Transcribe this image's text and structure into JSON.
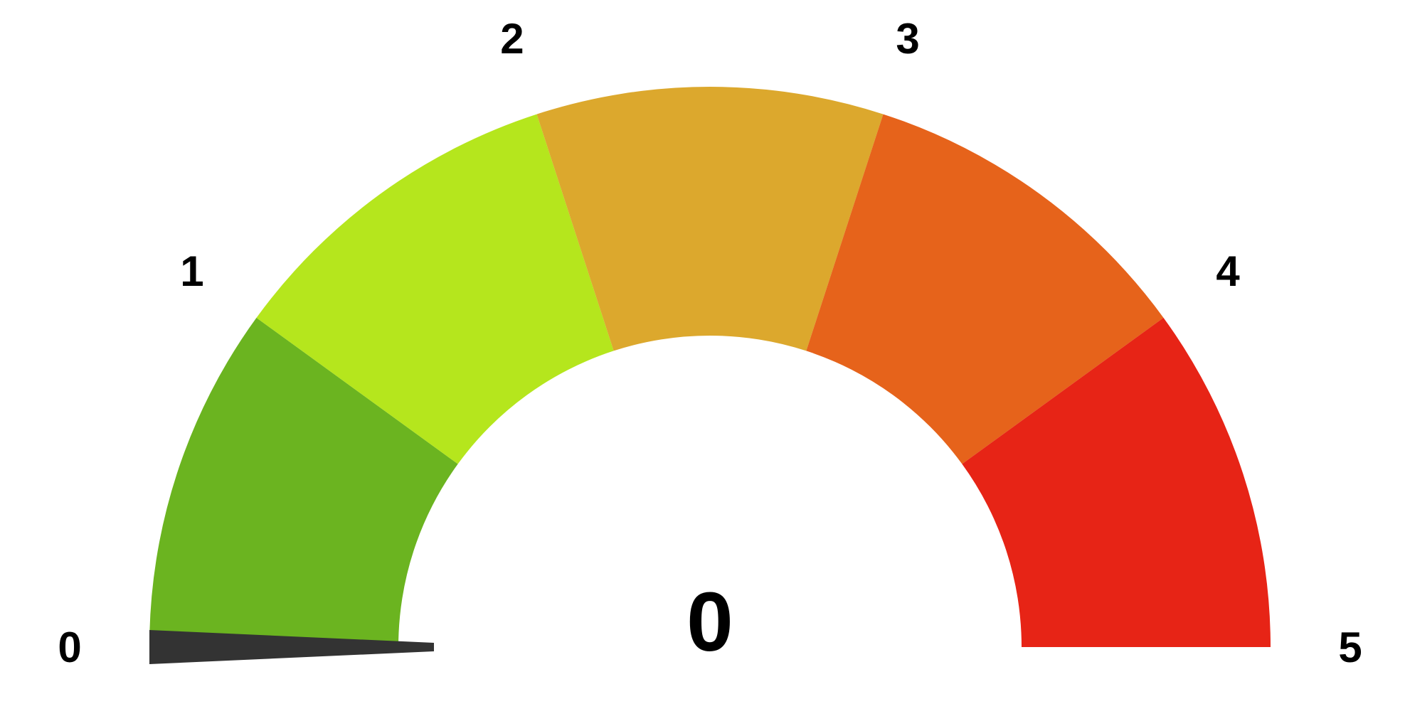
{
  "chart_data": {
    "type": "gauge",
    "min": 0,
    "max": 5,
    "value": 0,
    "value_label": "0",
    "ticks": [
      {
        "value": 0,
        "label": "0"
      },
      {
        "value": 1,
        "label": "1"
      },
      {
        "value": 2,
        "label": "2"
      },
      {
        "value": 3,
        "label": "3"
      },
      {
        "value": 4,
        "label": "4"
      },
      {
        "value": 5,
        "label": "5"
      }
    ],
    "bands": [
      {
        "from": 0,
        "to": 1,
        "color": "#6BB420"
      },
      {
        "from": 1,
        "to": 2,
        "color": "#B5E61D"
      },
      {
        "from": 2,
        "to": 3,
        "color": "#DCA82D"
      },
      {
        "from": 3,
        "to": 4,
        "color": "#E6631B"
      },
      {
        "from": 4,
        "to": 5,
        "color": "#E72416"
      }
    ],
    "needle_color": "#333333"
  }
}
